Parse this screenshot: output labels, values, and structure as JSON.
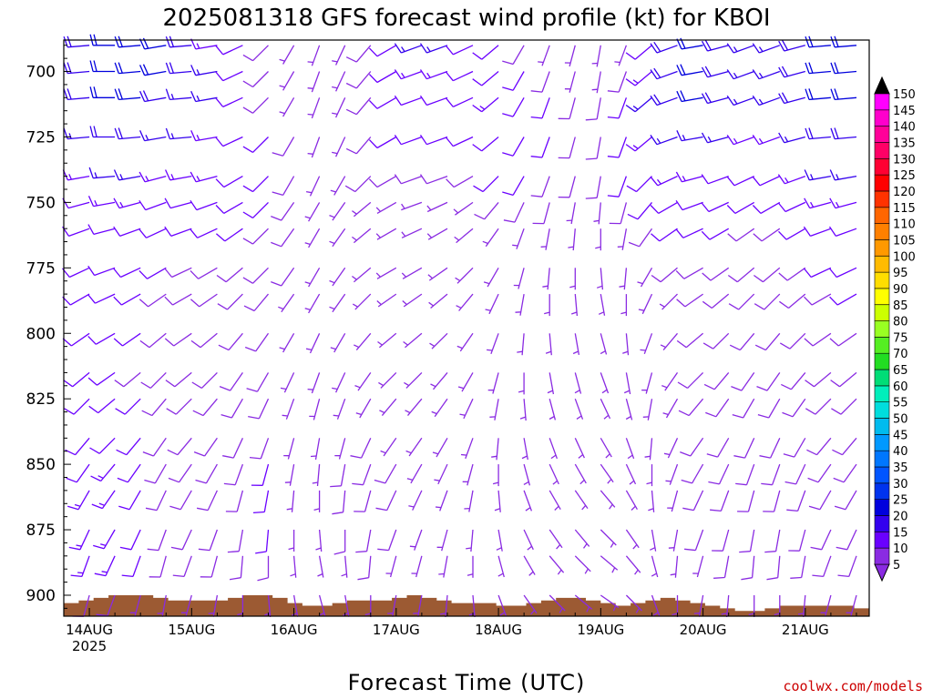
{
  "chart_data": {
    "type": "wind_barbs",
    "title": "2025081318 GFS forecast wind profile (kt) for KBOI",
    "xlabel": "Forecast Time (UTC)",
    "ylabel": "",
    "credit": "coolwx.com/models",
    "x_ticks": [
      "14AUG",
      "15AUG",
      "16AUG",
      "17AUG",
      "18AUG",
      "19AUG",
      "20AUG",
      "21AUG"
    ],
    "x_year": "2025",
    "y_ticks": [
      700,
      725,
      750,
      775,
      800,
      825,
      850,
      875,
      900
    ],
    "ylim": [
      908,
      688
    ],
    "x_hours_range": [
      -6,
      183
    ],
    "x_step_hours": 6,
    "pressure_levels": [
      690,
      700,
      710,
      725,
      740,
      750,
      760,
      775,
      785,
      800,
      815,
      825,
      840,
      850,
      860,
      875,
      885,
      900
    ],
    "colorbar": {
      "levels": [
        5,
        10,
        15,
        20,
        25,
        30,
        35,
        40,
        45,
        50,
        55,
        60,
        65,
        70,
        75,
        80,
        85,
        90,
        95,
        100,
        105,
        110,
        115,
        120,
        125,
        130,
        135,
        140,
        145,
        150
      ],
      "colors": [
        "#8a2be2",
        "#6a00ff",
        "#3300ee",
        "#0000dd",
        "#0033ee",
        "#0055ff",
        "#0077ff",
        "#0099ff",
        "#00bbee",
        "#00dddd",
        "#00eebb",
        "#00dd77",
        "#22dd22",
        "#55ee22",
        "#99ff22",
        "#ccff00",
        "#ffff00",
        "#ffdd00",
        "#ffbb00",
        "#ff9900",
        "#ff8000",
        "#ff6600",
        "#ff3300",
        "#ff0000",
        "#ff0033",
        "#ff0066",
        "#ff0099",
        "#ff00cc",
        "#ff00ff"
      ]
    },
    "terrain_color": "#9c5a33",
    "surface_pressure": [
      903,
      902,
      901,
      900,
      900,
      900,
      901,
      902,
      902,
      902,
      902,
      901,
      900,
      900,
      901,
      903,
      904,
      904,
      903,
      902,
      902,
      902,
      901,
      900,
      901,
      902,
      903,
      903,
      903,
      904,
      904,
      903,
      902,
      901,
      901,
      902,
      903,
      904,
      903,
      902,
      901,
      902,
      903,
      904,
      905,
      906,
      906,
      905,
      904,
      904,
      904,
      904,
      904,
      905
    ],
    "wind_times": [
      0,
      6,
      12,
      18,
      24,
      30,
      36,
      42,
      48,
      54,
      60,
      66,
      72,
      78,
      84,
      90,
      96,
      102,
      108,
      114,
      120,
      126,
      132,
      138,
      144,
      150,
      156,
      162,
      168,
      174,
      180
    ],
    "wind_speed": [
      [
        18,
        20,
        20,
        20,
        18,
        14,
        10,
        8,
        6,
        4,
        5,
        8,
        12,
        15,
        15,
        12,
        10,
        8,
        6,
        5,
        4,
        6,
        12,
        18,
        20,
        18,
        15,
        15,
        18,
        20,
        20
      ],
      [
        18,
        20,
        20,
        20,
        18,
        16,
        12,
        8,
        6,
        5,
        5,
        8,
        12,
        14,
        14,
        12,
        12,
        10,
        8,
        6,
        6,
        8,
        14,
        18,
        20,
        18,
        15,
        15,
        18,
        20,
        20
      ],
      [
        18,
        20,
        20,
        18,
        16,
        15,
        12,
        8,
        6,
        5,
        5,
        8,
        12,
        12,
        12,
        12,
        14,
        12,
        10,
        8,
        8,
        10,
        15,
        18,
        20,
        18,
        15,
        15,
        18,
        20,
        20
      ],
      [
        16,
        18,
        18,
        16,
        15,
        14,
        12,
        10,
        8,
        6,
        6,
        8,
        10,
        10,
        10,
        10,
        12,
        12,
        10,
        8,
        8,
        10,
        14,
        16,
        16,
        15,
        14,
        14,
        16,
        18,
        18
      ],
      [
        14,
        16,
        16,
        14,
        14,
        14,
        12,
        10,
        8,
        6,
        6,
        8,
        8,
        8,
        8,
        8,
        10,
        10,
        8,
        8,
        8,
        10,
        12,
        14,
        14,
        12,
        12,
        12,
        14,
        16,
        16
      ],
      [
        12,
        14,
        14,
        12,
        12,
        12,
        12,
        10,
        8,
        6,
        6,
        6,
        6,
        6,
        6,
        6,
        8,
        8,
        8,
        6,
        6,
        8,
        10,
        12,
        12,
        10,
        10,
        10,
        12,
        14,
        14
      ],
      [
        10,
        12,
        12,
        10,
        10,
        10,
        10,
        8,
        8,
        6,
        6,
        6,
        6,
        6,
        6,
        6,
        6,
        6,
        6,
        6,
        6,
        6,
        8,
        10,
        10,
        10,
        8,
        8,
        10,
        12,
        12
      ],
      [
        10,
        10,
        10,
        10,
        8,
        8,
        8,
        8,
        8,
        6,
        6,
        6,
        6,
        6,
        6,
        6,
        6,
        6,
        6,
        6,
        6,
        6,
        6,
        8,
        8,
        8,
        8,
        8,
        8,
        10,
        10
      ],
      [
        10,
        10,
        10,
        8,
        8,
        8,
        8,
        8,
        6,
        6,
        6,
        6,
        6,
        6,
        6,
        6,
        6,
        6,
        6,
        6,
        6,
        6,
        6,
        6,
        8,
        8,
        8,
        8,
        8,
        8,
        10
      ],
      [
        10,
        10,
        10,
        8,
        8,
        8,
        8,
        8,
        6,
        6,
        6,
        6,
        6,
        6,
        6,
        6,
        6,
        6,
        6,
        6,
        6,
        6,
        6,
        6,
        8,
        8,
        8,
        8,
        8,
        8,
        8
      ],
      [
        10,
        10,
        8,
        8,
        8,
        8,
        8,
        8,
        6,
        6,
        6,
        6,
        6,
        6,
        6,
        6,
        6,
        6,
        6,
        6,
        6,
        6,
        6,
        6,
        8,
        8,
        8,
        8,
        8,
        8,
        8
      ],
      [
        10,
        12,
        10,
        8,
        8,
        8,
        8,
        8,
        6,
        6,
        6,
        6,
        6,
        6,
        6,
        6,
        6,
        6,
        6,
        6,
        6,
        6,
        6,
        6,
        8,
        8,
        8,
        8,
        8,
        8,
        8
      ],
      [
        10,
        12,
        10,
        8,
        8,
        8,
        8,
        8,
        6,
        6,
        6,
        8,
        6,
        6,
        6,
        6,
        6,
        6,
        6,
        6,
        6,
        6,
        6,
        6,
        8,
        8,
        8,
        8,
        8,
        8,
        8
      ],
      [
        12,
        14,
        10,
        8,
        8,
        8,
        8,
        10,
        6,
        6,
        8,
        8,
        8,
        6,
        6,
        6,
        6,
        6,
        6,
        6,
        6,
        6,
        6,
        6,
        8,
        8,
        8,
        8,
        8,
        8,
        8
      ],
      [
        14,
        14,
        10,
        8,
        8,
        8,
        8,
        10,
        6,
        6,
        8,
        8,
        8,
        6,
        6,
        6,
        6,
        6,
        6,
        6,
        6,
        6,
        6,
        6,
        8,
        8,
        8,
        8,
        8,
        8,
        8
      ],
      [
        14,
        14,
        10,
        8,
        8,
        8,
        8,
        10,
        6,
        6,
        8,
        8,
        8,
        6,
        6,
        6,
        6,
        6,
        6,
        6,
        6,
        6,
        6,
        6,
        8,
        8,
        8,
        8,
        8,
        8,
        8
      ],
      [
        14,
        14,
        10,
        8,
        8,
        8,
        8,
        8,
        6,
        6,
        6,
        8,
        6,
        6,
        6,
        6,
        6,
        6,
        6,
        6,
        6,
        6,
        6,
        6,
        6,
        8,
        8,
        8,
        8,
        8,
        8
      ],
      [
        8,
        8,
        6,
        6,
        6,
        6,
        6,
        6,
        6,
        6,
        6,
        6,
        6,
        6,
        6,
        6,
        6,
        6,
        6,
        6,
        6,
        6,
        6,
        6,
        6,
        6,
        6,
        6,
        6,
        6,
        6
      ]
    ],
    "wind_dir": [
      [
        265,
        270,
        265,
        260,
        265,
        260,
        245,
        225,
        210,
        200,
        205,
        220,
        240,
        250,
        250,
        245,
        230,
        210,
        200,
        195,
        190,
        200,
        230,
        250,
        260,
        255,
        250,
        250,
        255,
        265,
        265
      ],
      [
        265,
        270,
        265,
        260,
        265,
        260,
        245,
        225,
        210,
        200,
        205,
        220,
        240,
        250,
        250,
        245,
        230,
        210,
        200,
        195,
        190,
        200,
        230,
        250,
        260,
        255,
        250,
        250,
        255,
        265,
        265
      ],
      [
        265,
        270,
        265,
        260,
        265,
        260,
        245,
        225,
        210,
        200,
        205,
        220,
        240,
        250,
        250,
        245,
        230,
        210,
        200,
        195,
        190,
        200,
        230,
        250,
        260,
        255,
        250,
        250,
        255,
        265,
        265
      ],
      [
        265,
        270,
        265,
        260,
        265,
        260,
        245,
        225,
        210,
        200,
        205,
        220,
        240,
        250,
        250,
        245,
        230,
        210,
        200,
        195,
        190,
        200,
        230,
        250,
        260,
        255,
        250,
        250,
        255,
        265,
        265
      ],
      [
        260,
        265,
        260,
        255,
        260,
        255,
        240,
        225,
        210,
        205,
        210,
        225,
        240,
        250,
        250,
        240,
        225,
        210,
        200,
        195,
        190,
        200,
        225,
        245,
        255,
        250,
        245,
        245,
        250,
        260,
        260
      ],
      [
        255,
        260,
        255,
        250,
        255,
        250,
        240,
        225,
        215,
        210,
        215,
        230,
        240,
        250,
        245,
        235,
        220,
        205,
        195,
        190,
        185,
        195,
        220,
        240,
        250,
        245,
        240,
        240,
        245,
        255,
        255
      ],
      [
        250,
        255,
        250,
        245,
        250,
        245,
        235,
        225,
        215,
        210,
        215,
        230,
        240,
        245,
        240,
        230,
        215,
        200,
        190,
        185,
        180,
        190,
        215,
        235,
        245,
        240,
        235,
        235,
        240,
        250,
        250
      ],
      [
        245,
        250,
        245,
        240,
        245,
        240,
        230,
        225,
        215,
        210,
        215,
        230,
        240,
        240,
        235,
        225,
        210,
        195,
        185,
        180,
        175,
        185,
        210,
        230,
        240,
        235,
        230,
        230,
        235,
        245,
        245
      ],
      [
        240,
        245,
        240,
        235,
        240,
        235,
        225,
        220,
        215,
        210,
        215,
        225,
        235,
        235,
        230,
        220,
        205,
        190,
        180,
        175,
        170,
        180,
        205,
        225,
        235,
        230,
        225,
        225,
        230,
        240,
        240
      ],
      [
        235,
        240,
        235,
        230,
        235,
        230,
        220,
        215,
        210,
        205,
        210,
        220,
        230,
        230,
        225,
        215,
        200,
        185,
        175,
        170,
        165,
        175,
        200,
        220,
        230,
        225,
        220,
        220,
        225,
        235,
        235
      ],
      [
        230,
        235,
        230,
        225,
        230,
        225,
        215,
        210,
        205,
        200,
        205,
        215,
        225,
        225,
        220,
        210,
        195,
        180,
        170,
        165,
        160,
        170,
        195,
        215,
        225,
        220,
        215,
        215,
        220,
        230,
        230
      ],
      [
        225,
        230,
        225,
        220,
        225,
        220,
        210,
        205,
        200,
        195,
        200,
        210,
        220,
        220,
        215,
        205,
        190,
        175,
        165,
        160,
        155,
        165,
        190,
        210,
        220,
        215,
        210,
        210,
        215,
        225,
        225
      ],
      [
        220,
        225,
        220,
        215,
        220,
        215,
        205,
        200,
        195,
        190,
        195,
        205,
        215,
        215,
        210,
        200,
        185,
        170,
        160,
        155,
        150,
        160,
        185,
        205,
        215,
        210,
        205,
        205,
        210,
        220,
        220
      ],
      [
        215,
        220,
        215,
        210,
        215,
        210,
        200,
        195,
        190,
        185,
        190,
        200,
        210,
        210,
        205,
        195,
        180,
        165,
        155,
        150,
        145,
        155,
        180,
        200,
        210,
        205,
        200,
        200,
        205,
        215,
        215
      ],
      [
        210,
        215,
        210,
        205,
        210,
        205,
        195,
        190,
        185,
        180,
        185,
        195,
        205,
        205,
        200,
        190,
        175,
        160,
        150,
        145,
        140,
        150,
        175,
        195,
        205,
        200,
        195,
        195,
        200,
        210,
        210
      ],
      [
        205,
        210,
        205,
        200,
        205,
        200,
        190,
        185,
        180,
        175,
        180,
        190,
        200,
        200,
        195,
        185,
        170,
        155,
        145,
        140,
        135,
        145,
        170,
        190,
        200,
        195,
        190,
        190,
        195,
        205,
        205
      ],
      [
        200,
        205,
        200,
        195,
        200,
        195,
        185,
        180,
        175,
        170,
        175,
        185,
        195,
        195,
        190,
        180,
        165,
        150,
        140,
        135,
        130,
        140,
        165,
        185,
        195,
        190,
        185,
        185,
        190,
        200,
        200
      ],
      [
        195,
        200,
        195,
        190,
        195,
        190,
        180,
        175,
        170,
        165,
        170,
        180,
        190,
        190,
        185,
        175,
        160,
        145,
        135,
        130,
        125,
        135,
        160,
        180,
        190,
        185,
        180,
        180,
        185,
        195,
        195
      ]
    ]
  }
}
